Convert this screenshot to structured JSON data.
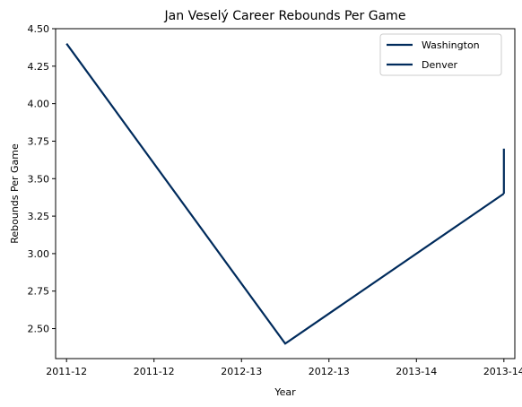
{
  "chart_data": {
    "type": "line",
    "title": "Jan Veselý Career Rebounds Per Game",
    "xlabel": "Year",
    "ylabel": "Rebounds Per Game",
    "xlim": [
      -0.05,
      2.05
    ],
    "ylim": [
      2.3,
      4.5
    ],
    "x_ticks": [
      {
        "value": 0.0,
        "label": "2011-12"
      },
      {
        "value": 0.4,
        "label": "2011-12"
      },
      {
        "value": 0.8,
        "label": "2012-13"
      },
      {
        "value": 1.2,
        "label": "2012-13"
      },
      {
        "value": 1.6,
        "label": "2013-14"
      },
      {
        "value": 2.0,
        "label": "2013-14"
      }
    ],
    "y_ticks": [
      2.5,
      2.75,
      3.0,
      3.25,
      3.5,
      3.75,
      4.0,
      4.25,
      4.5
    ],
    "grid": false,
    "legend_position": "top-right",
    "series": [
      {
        "name": "Washington",
        "color": "#002B5C",
        "x": [
          0,
          1,
          2
        ],
        "y": [
          4.4,
          2.4,
          3.4
        ]
      },
      {
        "name": "Denver",
        "color": "#002B5C",
        "x": [
          2,
          2
        ],
        "y": [
          3.4,
          3.7
        ]
      }
    ]
  }
}
